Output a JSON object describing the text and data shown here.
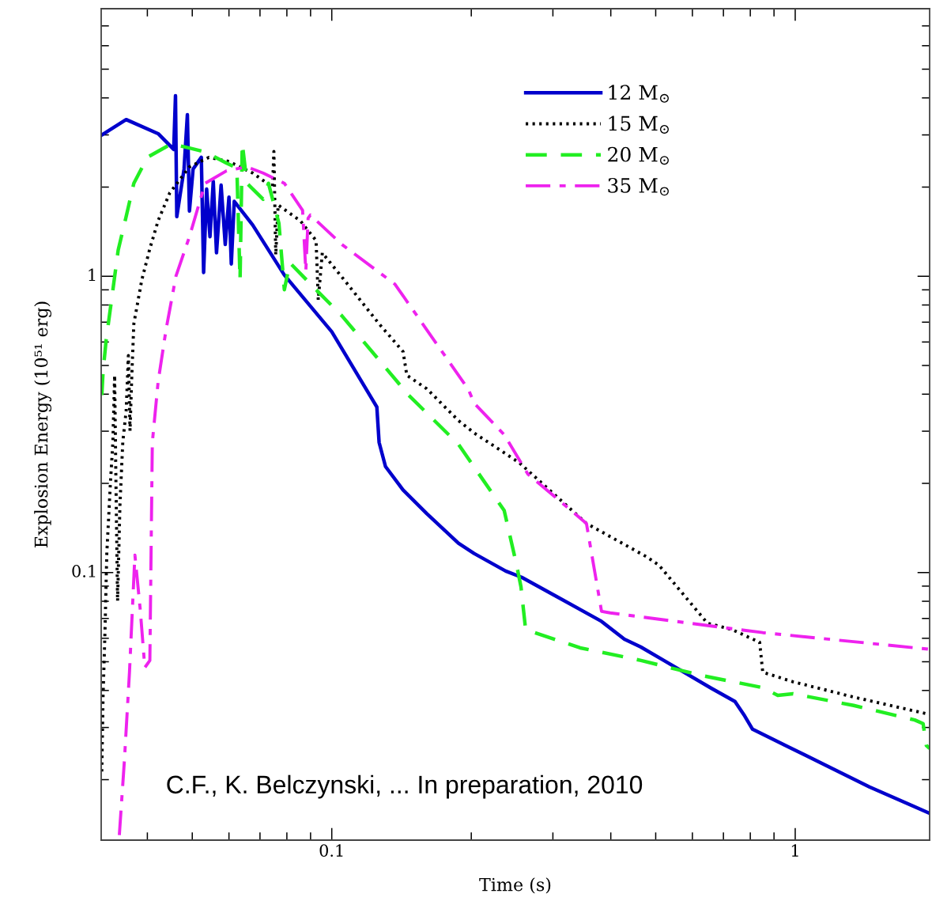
{
  "chart_data": {
    "type": "line",
    "xlabel": "Time (s)",
    "ylabel": "Explosion Energy (10⁵¹ erg)",
    "log": "xy",
    "xlim": [
      0.0318,
      1.95
    ],
    "ylim": [
      0.0125,
      8
    ],
    "xticks": [
      {
        "value": 0.04,
        "label": null
      },
      {
        "value": 0.05,
        "label": null
      },
      {
        "value": 0.06,
        "label": null
      },
      {
        "value": 0.07,
        "label": null
      },
      {
        "value": 0.08,
        "label": null
      },
      {
        "value": 0.09,
        "label": null
      },
      {
        "value": 0.1,
        "label": "0.1"
      },
      {
        "value": 0.2,
        "label": null
      },
      {
        "value": 0.3,
        "label": null
      },
      {
        "value": 0.4,
        "label": null
      },
      {
        "value": 0.5,
        "label": null
      },
      {
        "value": 0.6,
        "label": null
      },
      {
        "value": 0.7,
        "label": null
      },
      {
        "value": 0.8,
        "label": null
      },
      {
        "value": 0.9,
        "label": null
      },
      {
        "value": 1,
        "label": "1"
      }
    ],
    "yticks": [
      {
        "value": 0.02,
        "label": null
      },
      {
        "value": 0.03,
        "label": null
      },
      {
        "value": 0.04,
        "label": null
      },
      {
        "value": 0.05,
        "label": null
      },
      {
        "value": 0.06,
        "label": null
      },
      {
        "value": 0.07,
        "label": null
      },
      {
        "value": 0.08,
        "label": null
      },
      {
        "value": 0.09,
        "label": null
      },
      {
        "value": 0.1,
        "label": "0.1"
      },
      {
        "value": 0.2,
        "label": null
      },
      {
        "value": 0.3,
        "label": null
      },
      {
        "value": 0.4,
        "label": null
      },
      {
        "value": 0.5,
        "label": null
      },
      {
        "value": 0.6,
        "label": null
      },
      {
        "value": 0.7,
        "label": null
      },
      {
        "value": 0.8,
        "label": null
      },
      {
        "value": 0.9,
        "label": null
      },
      {
        "value": 1,
        "label": "1"
      },
      {
        "value": 2,
        "label": null
      },
      {
        "value": 3,
        "label": null
      },
      {
        "value": 4,
        "label": null
      },
      {
        "value": 5,
        "label": null
      },
      {
        "value": 6,
        "label": null
      },
      {
        "value": 7,
        "label": null
      }
    ],
    "grid": false,
    "legend": "top",
    "marker": "none",
    "annotations": [
      "C.F., K. Belczynski, ... In preparation, 2010"
    ],
    "series": [
      {
        "name": "12 M$_{⊙}$",
        "color": "#0000cc",
        "line_style": "solid",
        "x": [
          0.0318,
          0.036,
          0.0422,
          0.0456,
          0.046,
          0.0463,
          0.048,
          0.0488,
          0.0493,
          0.0502,
          0.0523,
          0.0529,
          0.0537,
          0.0546,
          0.0555,
          0.0564,
          0.0577,
          0.0589,
          0.06,
          0.0607,
          0.0616,
          0.0675,
          0.079,
          0.1,
          0.1251,
          0.1265,
          0.1306,
          0.1425,
          0.1604,
          0.1876,
          0.2028,
          0.2373,
          0.2569,
          0.3006,
          0.3805,
          0.428,
          0.464,
          0.5207,
          0.659,
          0.7413,
          0.778,
          0.809,
          0.977,
          1.446,
          1.95
        ],
        "values": [
          2.99,
          3.38,
          3.03,
          2.68,
          4.07,
          1.59,
          2.3,
          3.51,
          1.66,
          2.3,
          2.52,
          1.03,
          1.97,
          1.36,
          2.09,
          1.2,
          2.03,
          1.28,
          1.85,
          1.1,
          1.79,
          1.49,
          1.01,
          0.65,
          0.362,
          0.275,
          0.228,
          0.19,
          0.158,
          0.1256,
          0.116,
          0.1012,
          0.0964,
          0.0842,
          0.0687,
          0.0596,
          0.0561,
          0.0505,
          0.0407,
          0.0367,
          0.0328,
          0.0296,
          0.0256,
          0.0189,
          0.0154
        ]
      },
      {
        "name": "15 M$_{⊙}$",
        "color": "#000000",
        "line_style": "dotted",
        "x": [
          0.0319,
          0.0321,
          0.0324,
          0.0327,
          0.0333,
          0.0337,
          0.034,
          0.0342,
          0.0345,
          0.0349,
          0.0354,
          0.036,
          0.0364,
          0.0367,
          0.037,
          0.0374,
          0.0389,
          0.0405,
          0.0422,
          0.0447,
          0.0493,
          0.0543,
          0.06,
          0.0675,
          0.0745,
          0.075,
          0.0757,
          0.0766,
          0.0855,
          0.0925,
          0.0935,
          0.0954,
          0.1082,
          0.1265,
          0.1425,
          0.1452,
          0.1604,
          0.1876,
          0.2028,
          0.2537,
          0.3544,
          0.4777,
          0.5087,
          0.6463,
          0.7302,
          0.838,
          0.851,
          0.989,
          1.337,
          1.95
        ],
        "values": [
          0.0213,
          0.0383,
          0.0626,
          0.116,
          0.202,
          0.275,
          0.463,
          0.215,
          0.0801,
          0.168,
          0.275,
          0.351,
          0.54,
          0.301,
          0.449,
          0.691,
          0.97,
          1.24,
          1.54,
          1.91,
          2.34,
          2.52,
          2.44,
          2.23,
          2.0,
          2.64,
          1.18,
          1.74,
          1.54,
          1.32,
          0.832,
          1.2,
          0.94,
          0.691,
          0.557,
          0.463,
          0.417,
          0.326,
          0.296,
          0.235,
          0.1465,
          0.1131,
          0.1057,
          0.0675,
          0.0642,
          0.0582,
          0.0461,
          0.0428,
          0.038,
          0.0332
        ]
      },
      {
        "name": "20 M$_{⊙}$",
        "color": "#22ee22",
        "line_style": "dashed",
        "x": [
          0.0319,
          0.0321,
          0.0326,
          0.0336,
          0.0346,
          0.036,
          0.0374,
          0.04,
          0.0451,
          0.0493,
          0.0533,
          0.0593,
          0.0624,
          0.0634,
          0.0641,
          0.0656,
          0.0711,
          0.073,
          0.0769,
          0.079,
          0.0812,
          0.0925,
          0.1052,
          0.1465,
          0.1876,
          0.2355,
          0.25,
          0.256,
          0.262,
          0.3435,
          0.4648,
          0.6291,
          0.851,
          0.917,
          0.989,
          1.337,
          1.811,
          1.888,
          1.918,
          1.95
        ],
        "values": [
          0.397,
          0.478,
          0.611,
          0.868,
          1.225,
          1.59,
          2.06,
          2.52,
          2.8,
          2.71,
          2.63,
          2.41,
          2.32,
          0.97,
          2.81,
          2.06,
          1.82,
          2.06,
          1.51,
          0.901,
          1.11,
          0.901,
          0.735,
          0.397,
          0.271,
          0.162,
          0.1076,
          0.0895,
          0.0642,
          0.0557,
          0.0505,
          0.0449,
          0.0409,
          0.0385,
          0.039,
          0.0356,
          0.0318,
          0.0309,
          0.0261,
          0.0255
        ]
      },
      {
        "name": "35 M$_{⊙}$",
        "color": "#ee22ee",
        "line_style": "dashdot",
        "x": [
          0.0348,
          0.0357,
          0.0366,
          0.0376,
          0.0386,
          0.0395,
          0.0405,
          0.041,
          0.0422,
          0.0439,
          0.0461,
          0.0493,
          0.0533,
          0.0593,
          0.0656,
          0.0711,
          0.079,
          0.0865,
          0.0879,
          0.0889,
          0.0899,
          0.1052,
          0.1369,
          0.1972,
          0.2028,
          0.2355,
          0.2649,
          0.3544,
          0.382,
          0.399,
          0.851,
          1.95
        ],
        "values": [
          0.013,
          0.0234,
          0.0461,
          0.1146,
          0.0753,
          0.0478,
          0.0505,
          0.275,
          0.441,
          0.662,
          1.0,
          1.36,
          2.06,
          2.27,
          2.34,
          2.23,
          2.06,
          1.67,
          1.04,
          1.57,
          1.61,
          1.28,
          0.94,
          0.415,
          0.373,
          0.292,
          0.215,
          0.1465,
          0.074,
          0.0731,
          0.0627,
          0.0551
        ]
      }
    ]
  }
}
